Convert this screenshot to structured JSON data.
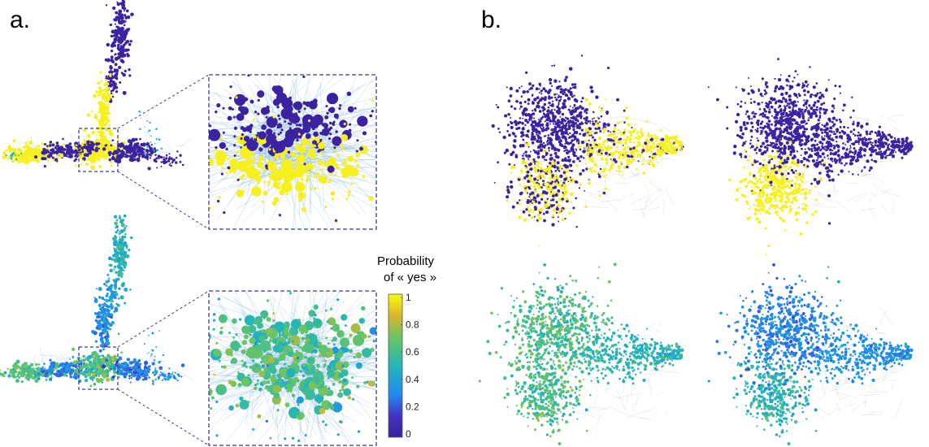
{
  "figure": {
    "panel_a_label": "a.",
    "panel_b_label": "b."
  },
  "colorbar": {
    "title_line1": "Probability",
    "title_line2": "of « yes »",
    "ticks": [
      "1",
      "0.8",
      "0.6",
      "0.4",
      "0.2",
      "0"
    ],
    "colors": [
      "#f9fb0e",
      "#d9b52a",
      "#6bc562",
      "#23b5b8",
      "#1f8cf0",
      "#4432c4",
      "#36239b"
    ]
  },
  "palette": {
    "yes": "#f6f01e",
    "no": "#3a22a0",
    "edge": "#7fb3dc",
    "inset_border": "#3c3c8c",
    "gray_edge": "#a9a9a9"
  }
}
